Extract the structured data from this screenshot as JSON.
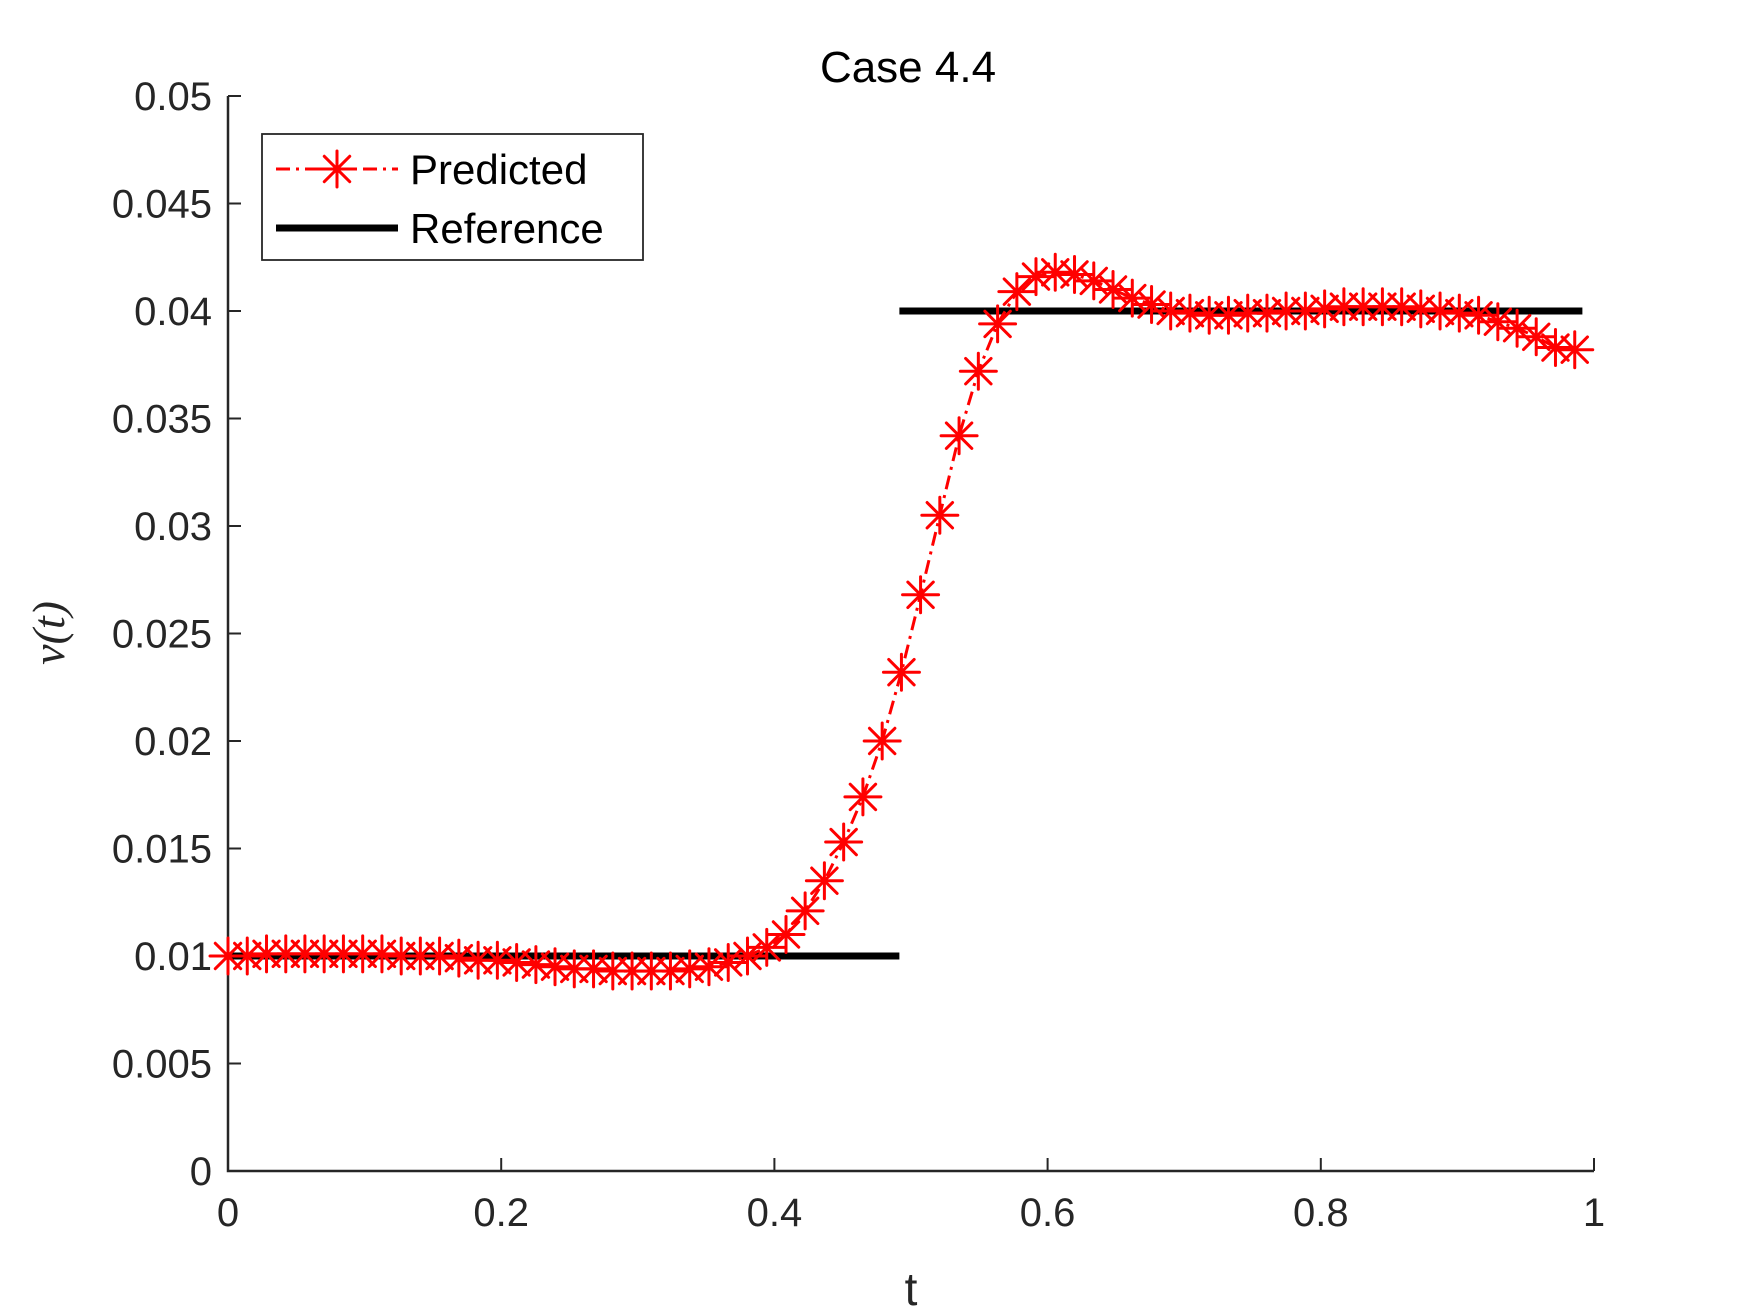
{
  "chart_data": {
    "type": "line",
    "title": "Case 4.4",
    "xlabel": "t",
    "ylabel": "ν(t)",
    "xlim": [
      0,
      1
    ],
    "ylim": [
      0,
      0.05
    ],
    "x_ticks": [
      "0",
      "0.2",
      "0.4",
      "0.6",
      "0.8",
      "1"
    ],
    "y_ticks": [
      "0",
      "0.005",
      "0.01",
      "0.015",
      "0.02",
      "0.025",
      "0.03",
      "0.035",
      "0.04",
      "0.045",
      "0.05"
    ],
    "x_tick_values": [
      0,
      0.2,
      0.4,
      0.6,
      0.8,
      1
    ],
    "y_tick_values": [
      0,
      0.005,
      0.01,
      0.015,
      0.02,
      0.025,
      0.03,
      0.035,
      0.04,
      0.045,
      0.05
    ],
    "grid": false,
    "legend": {
      "position": "top-left"
    },
    "series": [
      {
        "name": "Predicted",
        "color": "#ff0000",
        "line_style": "dash-dot",
        "marker": "asterisk",
        "x": [
          0,
          0.0141,
          0.0282,
          0.0423,
          0.0563,
          0.0704,
          0.0845,
          0.0986,
          0.1127,
          0.1268,
          0.1408,
          0.1549,
          0.169,
          0.1831,
          0.1972,
          0.2113,
          0.2254,
          0.2394,
          0.2535,
          0.2676,
          0.2817,
          0.2958,
          0.3099,
          0.3239,
          0.338,
          0.3521,
          0.3662,
          0.3803,
          0.3944,
          0.4085,
          0.4225,
          0.4366,
          0.4507,
          0.4648,
          0.4789,
          0.493,
          0.507,
          0.5211,
          0.5352,
          0.5493,
          0.5634,
          0.5775,
          0.5915,
          0.6056,
          0.6197,
          0.6338,
          0.6479,
          0.662,
          0.6761,
          0.6901,
          0.7042,
          0.7183,
          0.7324,
          0.7465,
          0.7606,
          0.7746,
          0.7887,
          0.8028,
          0.8169,
          0.831,
          0.8451,
          0.8592,
          0.8732,
          0.8873,
          0.9014,
          0.9155,
          0.9296,
          0.9437,
          0.9577,
          0.9718,
          0.9859
        ],
        "values": [
          0.01,
          0.01,
          0.0101,
          0.0101,
          0.0101,
          0.0101,
          0.0101,
          0.0101,
          0.0101,
          0.01,
          0.01,
          0.01,
          0.0099,
          0.0098,
          0.0098,
          0.0097,
          0.0096,
          0.0095,
          0.0094,
          0.0094,
          0.0093,
          0.0093,
          0.0093,
          0.0093,
          0.0094,
          0.0095,
          0.0097,
          0.01,
          0.0104,
          0.011,
          0.0121,
          0.0135,
          0.0153,
          0.0174,
          0.02,
          0.0232,
          0.0268,
          0.0305,
          0.0342,
          0.0372,
          0.0394,
          0.0409,
          0.0416,
          0.0418,
          0.0417,
          0.0414,
          0.041,
          0.0406,
          0.0403,
          0.04,
          0.0399,
          0.0398,
          0.0398,
          0.0399,
          0.0399,
          0.04,
          0.04,
          0.0401,
          0.0402,
          0.0402,
          0.0402,
          0.0402,
          0.0401,
          0.04,
          0.0399,
          0.0398,
          0.0395,
          0.0392,
          0.0388,
          0.0383,
          0.0382
        ]
      },
      {
        "name": "Reference",
        "color": "#000000",
        "line_style": "solid",
        "marker": "none",
        "segments": [
          {
            "x": [
              0,
              0.4915
            ],
            "values": [
              0.01,
              0.01
            ]
          },
          {
            "x": [
              0.4915,
              0.9915
            ],
            "values": [
              0.04,
              0.04
            ]
          }
        ]
      }
    ]
  }
}
